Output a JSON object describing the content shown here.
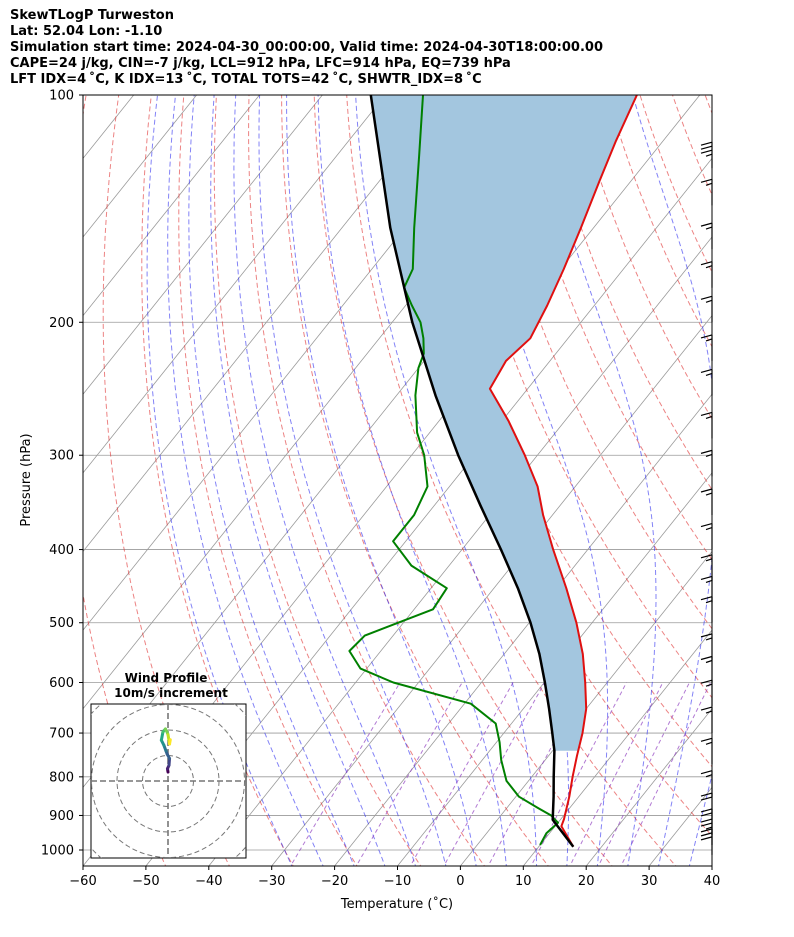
{
  "header": {
    "title": "SkewTLogP Turweston",
    "location": "Lat: 52.04   Lon: -1.10",
    "times": "Simulation start time: 2024-04-30_00:00:00, Valid time: 2024-04-30T18:00:00.00",
    "indices1": "CAPE=24 j/kg, CIN=-7 j/kg, LCL=912 hPa, LFC=914 hPa, EQ=739 hPa",
    "indices2": "LFT IDX=4 ˚C, K IDX=13 ˚C, TOTAL TOTS=42 ˚C, SHWTR_IDX=8 ˚C"
  },
  "colors": {
    "temperature": "#e01010",
    "dewpoint": "#008000",
    "parcel": "#000000",
    "cape_fill": "#a3c6df",
    "dry_adiabat": "#e03030",
    "moist_adiabat": "#3030f0",
    "mixing_ratio": "#9040c0",
    "isotherm": "#9a9a9a"
  },
  "chart_data": [
    {
      "type": "line",
      "skew": true,
      "title": "",
      "xlabel": "Temperature ($^\\circ$C)",
      "ylabel": "Pressure (hPa)",
      "xlim": [
        -60,
        40
      ],
      "ylim": [
        1050,
        100
      ],
      "yscale": "log",
      "grid": true,
      "x_ticks": [
        "−60",
        "−50",
        "−40",
        "−30",
        "−20",
        "−10",
        "0",
        "10",
        "20",
        "30",
        "40"
      ],
      "y_ticks": [
        "100",
        "200",
        "300",
        "400",
        "500",
        "600",
        "700",
        "800",
        "900",
        "1000"
      ],
      "series": [
        {
          "key": "temperature",
          "pressure": [
            990,
            930,
            910,
            850,
            800,
            750,
            700,
            650,
            600,
            550,
            500,
            450,
            400,
            360,
            330,
            300,
            270,
            245,
            225,
            210,
            190,
            170,
            150,
            130,
            115,
            100
          ],
          "values": [
            15.5,
            11.0,
            10.5,
            8.5,
            6.5,
            4.5,
            2.5,
            0.0,
            -3.5,
            -7.5,
            -12.5,
            -18.5,
            -25.5,
            -31.5,
            -36.0,
            -42.0,
            -49.0,
            -56.0,
            -57.0,
            -56.0,
            -57.5,
            -59.5,
            -62.0,
            -65.0,
            -67.5,
            -70.0
          ]
        },
        {
          "key": "dewpoint",
          "pressure": [
            985,
            950,
            920,
            900,
            880,
            850,
            810,
            760,
            720,
            680,
            640,
            600,
            575,
            545,
            520,
            480,
            450,
            420,
            390,
            360,
            330,
            300,
            280,
            250,
            230,
            220,
            210,
            200,
            190,
            180,
            170,
            150,
            120,
            100
          ],
          "values": [
            10.0,
            9.5,
            10.0,
            8.0,
            5.0,
            0.5,
            -3.5,
            -7.0,
            -9.5,
            -12.5,
            -19.0,
            -34.0,
            -41.0,
            -45.0,
            -44.5,
            -37.0,
            -37.5,
            -46.0,
            -52.0,
            -52.0,
            -53.5,
            -58.0,
            -62.0,
            -67.0,
            -70.0,
            -71.0,
            -73.0,
            -75.5,
            -79.0,
            -82.5,
            -83.5,
            -88.5,
            -97.0,
            -104.0
          ]
        },
        {
          "key": "parcel",
          "pressure": [
            990,
            912,
            850,
            800,
            739,
            700,
            650,
            600,
            550,
            500,
            450,
            400,
            350,
            300,
            250,
            200,
            150,
            100
          ],
          "values": [
            15.5,
            8.8,
            6.0,
            3.5,
            0.3,
            -2.3,
            -5.9,
            -9.9,
            -14.4,
            -19.8,
            -26.2,
            -33.8,
            -42.6,
            -52.6,
            -63.8,
            -76.8,
            -92.3,
            -112.3
          ]
        }
      ],
      "shaded_region": {
        "between": [
          "parcel",
          "temperature"
        ],
        "from_pressure": 739,
        "to_pressure": 100,
        "color": "#a3c6df"
      },
      "wind_barbs": {
        "pressure": [
          1015,
          985,
          955,
          910,
          850,
          770,
          700,
          645,
          600,
          560,
          500,
          470,
          440,
          400,
          360,
          320,
          285,
          250,
          225,
          200,
          180,
          160,
          140,
          125
        ],
        "speed_kt": [
          30,
          25,
          20,
          20,
          15,
          15,
          15,
          15,
          15,
          15,
          15,
          15,
          15,
          15,
          15,
          15,
          15,
          15,
          15,
          15,
          15,
          15,
          15,
          35
        ]
      }
    },
    {
      "type": "line",
      "title": "Wind Profile",
      "subtitle": "10m/s increment",
      "grid": true,
      "rings_ms": [
        10,
        20,
        30,
        40
      ],
      "u": [
        0.0,
        -0.2,
        0.4,
        0.6,
        -0.3,
        -0.8,
        -1.6,
        -2.6,
        -2.0,
        -1.0,
        -0.5,
        0.0,
        0.6,
        0.9
      ],
      "v": [
        3.5,
        4.8,
        6.2,
        8.8,
        10.5,
        11.8,
        14.0,
        16.0,
        19.2,
        20.4,
        19.5,
        18.2,
        14.5,
        16.2
      ]
    }
  ]
}
